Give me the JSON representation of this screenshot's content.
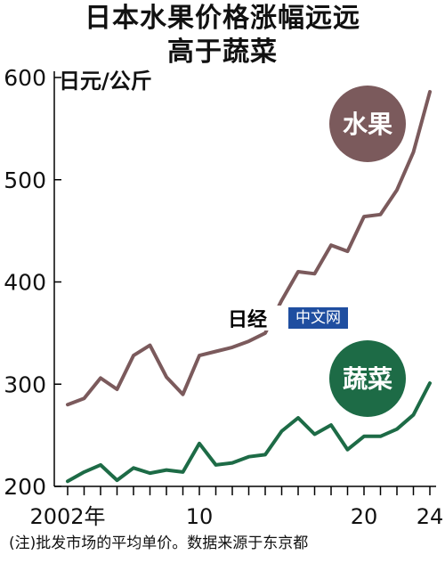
{
  "title": {
    "line1": "日本水果价格涨幅远远",
    "line2": "高于蔬菜"
  },
  "note": "(注)批发市场的平均单价。数据来源于东京都",
  "watermark": {
    "logo": "日经",
    "tag": "中文网"
  },
  "colors": {
    "fruit": "#7b5a5c",
    "vegetable": "#1d6b46",
    "axis": "#000000",
    "background": "#ffffff",
    "watermark_tag": "#1f4ea0"
  },
  "chart_data": {
    "type": "line",
    "ylabel": "日元/公斤",
    "ylim": [
      200,
      600
    ],
    "yticks": [
      200,
      300,
      400,
      500,
      600
    ],
    "x": [
      2002,
      2003,
      2004,
      2005,
      2006,
      2007,
      2008,
      2009,
      2010,
      2011,
      2012,
      2013,
      2014,
      2015,
      2016,
      2017,
      2018,
      2019,
      2020,
      2021,
      2022,
      2023,
      2024
    ],
    "xlim": [
      2002,
      2024
    ],
    "xtick_labels": [
      {
        "x": 2002,
        "label": "2002年"
      },
      {
        "x": 2010,
        "label": "10"
      },
      {
        "x": 2020,
        "label": "20"
      },
      {
        "x": 2024,
        "label": "24"
      }
    ],
    "grid": false,
    "series": [
      {
        "name": "水果",
        "values": [
          280,
          286,
          306,
          295,
          328,
          338,
          307,
          290,
          328,
          332,
          336,
          342,
          350,
          382,
          410,
          408,
          436,
          430,
          464,
          466,
          490,
          527,
          586
        ]
      },
      {
        "name": "蔬菜",
        "values": [
          205,
          214,
          221,
          206,
          218,
          213,
          216,
          214,
          242,
          221,
          223,
          229,
          231,
          254,
          267,
          251,
          260,
          236,
          249,
          249,
          256,
          270,
          301
        ]
      }
    ]
  }
}
